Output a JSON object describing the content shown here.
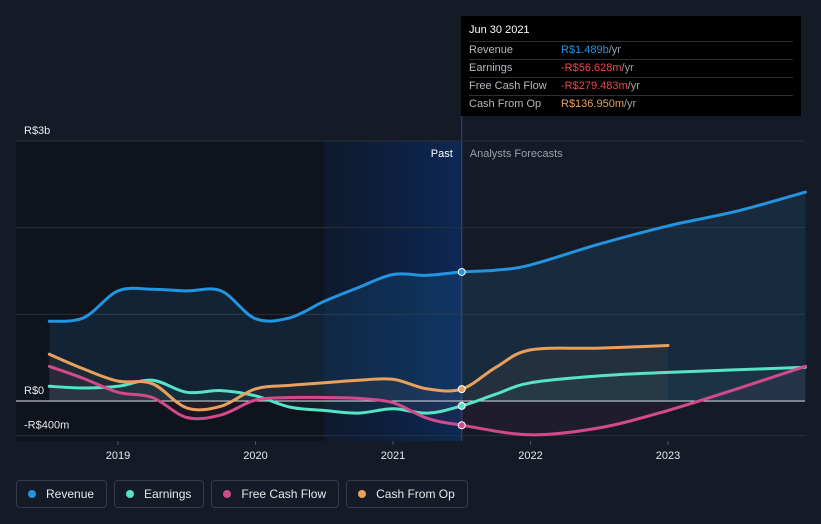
{
  "chart_data": {
    "type": "line",
    "y_tick_labels": [
      "R$3b",
      "R$0",
      "-R$400m"
    ],
    "x_tick_labels": [
      "2019",
      "2020",
      "2021",
      "2022",
      "2023"
    ],
    "ylim": [
      -400,
      3000
    ],
    "region_labels": {
      "past": "Past",
      "forecast": "Analysts Forecasts"
    },
    "series": [
      {
        "name": "Revenue",
        "color": "#2394df",
        "points": [
          [
            2018.5,
            920
          ],
          [
            2018.75,
            960
          ],
          [
            2019.0,
            1270
          ],
          [
            2019.25,
            1290
          ],
          [
            2019.5,
            1270
          ],
          [
            2019.75,
            1270
          ],
          [
            2020.0,
            950
          ],
          [
            2020.25,
            960
          ],
          [
            2020.5,
            1150
          ],
          [
            2020.75,
            1310
          ],
          [
            2021.0,
            1460
          ],
          [
            2021.25,
            1450
          ],
          [
            2021.5,
            1489
          ],
          [
            2021.75,
            1510
          ],
          [
            2022.0,
            1570
          ],
          [
            2022.5,
            1810
          ],
          [
            2023.0,
            2020
          ],
          [
            2023.5,
            2190
          ],
          [
            2024.0,
            2410
          ]
        ]
      },
      {
        "name": "Earnings",
        "color": "#56e3c6",
        "points": [
          [
            2018.5,
            170
          ],
          [
            2018.75,
            150
          ],
          [
            2019.0,
            170
          ],
          [
            2019.25,
            240
          ],
          [
            2019.5,
            100
          ],
          [
            2019.75,
            120
          ],
          [
            2020.0,
            60
          ],
          [
            2020.25,
            -70
          ],
          [
            2020.5,
            -110
          ],
          [
            2020.75,
            -140
          ],
          [
            2021.0,
            -90
          ],
          [
            2021.25,
            -140
          ],
          [
            2021.5,
            -56.628
          ],
          [
            2021.75,
            80
          ],
          [
            2022.0,
            210
          ],
          [
            2022.5,
            290
          ],
          [
            2023.0,
            330
          ],
          [
            2023.5,
            360
          ],
          [
            2024.0,
            390
          ]
        ]
      },
      {
        "name": "Free Cash Flow",
        "color": "#d24a8c",
        "points": [
          [
            2018.5,
            400
          ],
          [
            2018.75,
            260
          ],
          [
            2019.0,
            100
          ],
          [
            2019.25,
            40
          ],
          [
            2019.5,
            -190
          ],
          [
            2019.75,
            -160
          ],
          [
            2020.0,
            10
          ],
          [
            2020.25,
            40
          ],
          [
            2020.5,
            40
          ],
          [
            2020.75,
            30
          ],
          [
            2021.0,
            -20
          ],
          [
            2021.25,
            -200
          ],
          [
            2021.5,
            -279.483
          ],
          [
            2022.0,
            -390
          ],
          [
            2022.5,
            -310
          ],
          [
            2023.0,
            -110
          ],
          [
            2023.5,
            140
          ],
          [
            2024.0,
            400
          ]
        ]
      },
      {
        "name": "Cash From Op",
        "color": "#eaa05d",
        "points": [
          [
            2018.5,
            540
          ],
          [
            2018.75,
            370
          ],
          [
            2019.0,
            230
          ],
          [
            2019.25,
            200
          ],
          [
            2019.5,
            -80
          ],
          [
            2019.75,
            -60
          ],
          [
            2020.0,
            140
          ],
          [
            2020.25,
            180
          ],
          [
            2020.5,
            210
          ],
          [
            2020.75,
            240
          ],
          [
            2021.0,
            250
          ],
          [
            2021.25,
            140
          ],
          [
            2021.5,
            136.95
          ],
          [
            2021.75,
            390
          ],
          [
            2022.0,
            590
          ],
          [
            2022.5,
            610
          ],
          [
            2023.0,
            640
          ]
        ]
      }
    ],
    "forecast_start": 2021.5
  },
  "tooltip": {
    "date": "Jun 30 2021",
    "rows": [
      {
        "name": "Revenue",
        "value": "R$1.489b",
        "unit": " /yr",
        "color": "#2394df"
      },
      {
        "name": "Earnings",
        "value": "-R$56.628m",
        "unit": " /yr",
        "color": "#e84a4a"
      },
      {
        "name": "Free Cash Flow",
        "value": "-R$279.483m",
        "unit": " /yr",
        "color": "#e84a4a"
      },
      {
        "name": "Cash From Op",
        "value": "R$136.950m",
        "unit": " /yr",
        "color": "#eaa05d"
      }
    ]
  },
  "legend": [
    {
      "label": "Revenue",
      "color": "#2394df"
    },
    {
      "label": "Earnings",
      "color": "#56e3c6"
    },
    {
      "label": "Free Cash Flow",
      "color": "#d24a8c"
    },
    {
      "label": "Cash From Op",
      "color": "#eaa05d"
    }
  ]
}
